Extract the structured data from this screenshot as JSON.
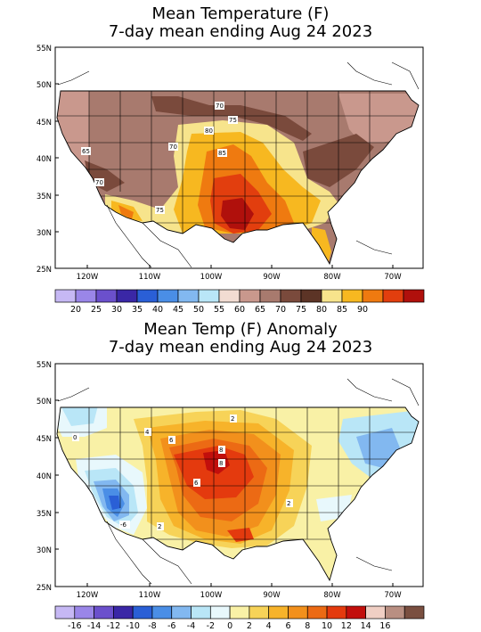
{
  "top_map": {
    "title_line1": "Mean Temperature (F)",
    "title_line2": "7-day mean ending Aug 24 2023",
    "lat_labels": [
      "55N",
      "50N",
      "45N",
      "40N",
      "35N",
      "30N",
      "25N"
    ],
    "lon_labels": [
      "120W",
      "110W",
      "100W",
      "90W",
      "80W",
      "70W"
    ],
    "contour_labels": [
      "70",
      "75",
      "80",
      "85",
      "65",
      "70",
      "75",
      "70"
    ],
    "colorbar": {
      "colors": [
        "#c6b8f4",
        "#9a86e8",
        "#6b50cc",
        "#3a27a6",
        "#2a5fd6",
        "#4a8ee6",
        "#82b8f0",
        "#b9e6f7",
        "#f2dcd2",
        "#c9988d",
        "#a87a6e",
        "#7a4a3c",
        "#5c3426",
        "#f7e48c",
        "#f7b820",
        "#ef7a10",
        "#e23e0e",
        "#b0100c"
      ],
      "labels": [
        "20",
        "25",
        "30",
        "35",
        "40",
        "45",
        "50",
        "55",
        "60",
        "65",
        "70",
        "75",
        "80",
        "85",
        "90"
      ]
    }
  },
  "bottom_map": {
    "title_line1": "Mean Temp (F) Anomaly",
    "title_line2": "7-day mean ending Aug 24 2023",
    "lat_labels": [
      "55N",
      "50N",
      "45N",
      "40N",
      "35N",
      "30N",
      "25N"
    ],
    "lon_labels": [
      "120W",
      "110W",
      "100W",
      "90W",
      "80W",
      "70W"
    ],
    "contour_labels": [
      "0",
      "4",
      "6",
      "8",
      "8",
      "2",
      "6",
      "-6",
      "2",
      "2"
    ],
    "colorbar": {
      "colors": [
        "#c6b8f4",
        "#9a86e8",
        "#6b50cc",
        "#3a27a6",
        "#2a5fd6",
        "#4a8ee6",
        "#82b8f0",
        "#b9e6f7",
        "#e8f8fc",
        "#f9f1a6",
        "#f7d358",
        "#f7b32a",
        "#f2901c",
        "#ec6a14",
        "#e43a0e",
        "#c20f0c",
        "#f0cfc4",
        "#b98f82",
        "#7a4f40"
      ],
      "labels": [
        "-16",
        "-14",
        "-12",
        "-10",
        "-8",
        "-6",
        "-4",
        "-2",
        "0",
        "2",
        "4",
        "6",
        "8",
        "10",
        "12",
        "14",
        "16"
      ]
    }
  }
}
